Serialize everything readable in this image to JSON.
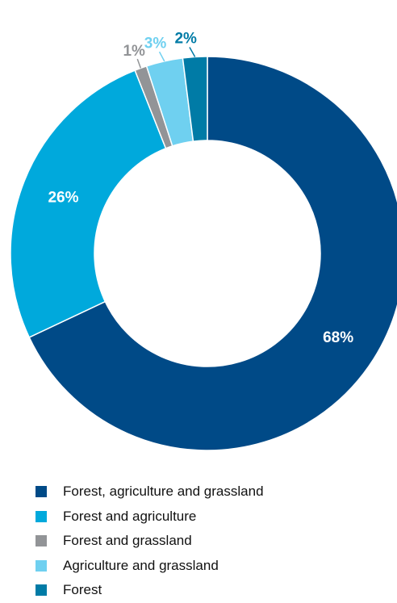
{
  "chart_data": {
    "type": "pie",
    "variant": "donut",
    "slices": [
      {
        "label": "Forest, agriculture and grassland",
        "value": 68,
        "display": "68%",
        "color": "#004a87"
      },
      {
        "label": "Forest and agriculture",
        "value": 26,
        "display": "26%",
        "color": "#00a9dc"
      },
      {
        "label": "Forest and grassland",
        "value": 1,
        "display": "1%",
        "color": "#929497"
      },
      {
        "label": "Agriculture and grassland",
        "value": 3,
        "display": "3%",
        "color": "#6fd0f0"
      },
      {
        "label": "Forest",
        "value": 2,
        "display": "2%",
        "color": "#007ba6"
      }
    ],
    "legend_position": "bottom-left"
  }
}
